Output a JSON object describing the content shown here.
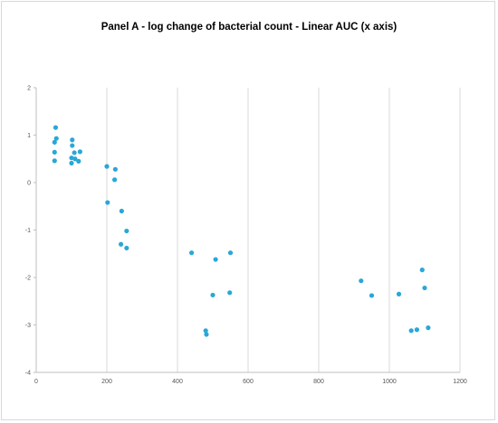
{
  "chart_data": {
    "type": "scatter",
    "title": "Panel A - log change of bacterial count - Linear AUC (x axis)",
    "xlabel": "",
    "ylabel": "",
    "xlim": [
      0,
      1200
    ],
    "ylim": [
      -4,
      2
    ],
    "xticks": [
      0,
      200,
      400,
      600,
      800,
      1000,
      1200
    ],
    "yticks": [
      -4,
      -3,
      -2,
      -1,
      0,
      1,
      2
    ],
    "xtick_labels": [
      "0",
      "200",
      "400",
      "600",
      "800",
      "1000",
      "1200"
    ],
    "ytick_labels": [
      "-4",
      "-3",
      "-2",
      "-1",
      "0",
      "1",
      "2"
    ],
    "grid": "vertical",
    "legend": "none",
    "marker_color": "#2aa7d8",
    "series": [
      {
        "points": [
          [
            55,
            1.16
          ],
          [
            57,
            0.93
          ],
          [
            52,
            0.85
          ],
          [
            52,
            0.64
          ],
          [
            52,
            0.46
          ],
          [
            102,
            0.9
          ],
          [
            102,
            0.78
          ],
          [
            108,
            0.63
          ],
          [
            124,
            0.65
          ],
          [
            100,
            0.52
          ],
          [
            110,
            0.5
          ],
          [
            120,
            0.45
          ],
          [
            100,
            0.41
          ],
          [
            200,
            0.34
          ],
          [
            224,
            0.28
          ],
          [
            222,
            0.06
          ],
          [
            202,
            -0.42
          ],
          [
            242,
            -0.6
          ],
          [
            256,
            -1.02
          ],
          [
            240,
            -1.3
          ],
          [
            256,
            -1.38
          ],
          [
            440,
            -1.48
          ],
          [
            550,
            -1.48
          ],
          [
            508,
            -1.62
          ],
          [
            500,
            -2.37
          ],
          [
            548,
            -2.32
          ],
          [
            480,
            -3.12
          ],
          [
            482,
            -3.2
          ],
          [
            920,
            -2.07
          ],
          [
            950,
            -2.38
          ],
          [
            1027,
            -2.35
          ],
          [
            1093,
            -1.84
          ],
          [
            1100,
            -2.22
          ],
          [
            1062,
            -3.12
          ],
          [
            1078,
            -3.1
          ],
          [
            1110,
            -3.06
          ]
        ]
      }
    ]
  }
}
